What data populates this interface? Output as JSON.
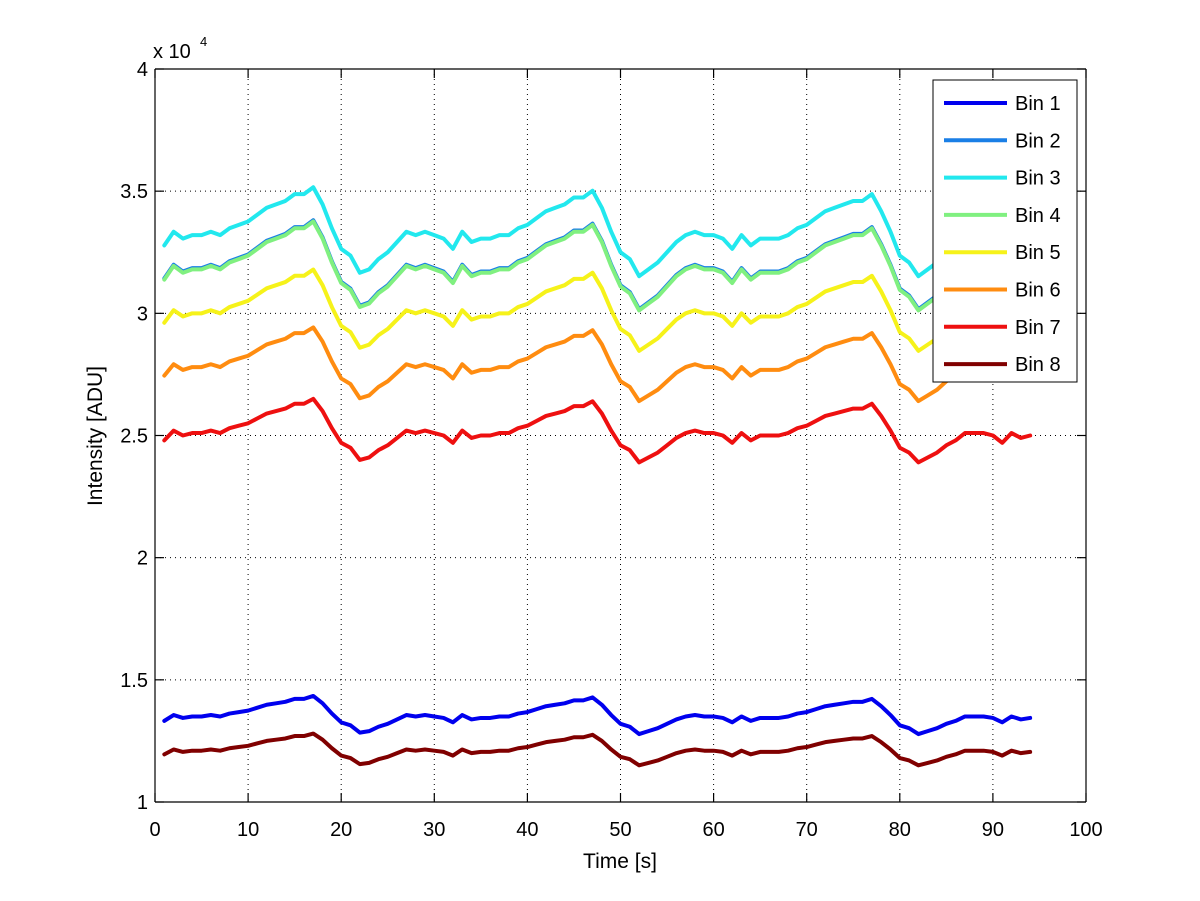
{
  "chart_data": {
    "type": "line",
    "title": "",
    "xlabel": "Time [s]",
    "ylabel": "Intensity [ADU]",
    "xlim": [
      0,
      100
    ],
    "ylim": [
      1,
      4
    ],
    "y_scale_exponent": 4,
    "y_multiplier_label": "x 10",
    "y_multiplier_exponent_label": "4",
    "x_ticks": [
      0,
      10,
      20,
      30,
      40,
      50,
      60,
      70,
      80,
      90,
      100
    ],
    "x_tick_labels": [
      "0",
      "10",
      "20",
      "30",
      "40",
      "50",
      "60",
      "70",
      "80",
      "90",
      "100"
    ],
    "y_ticks": [
      1,
      1.5,
      2,
      2.5,
      3,
      3.5,
      4
    ],
    "y_tick_labels": [
      "1",
      "1.5",
      "2",
      "2.5",
      "3",
      "3.5",
      "4"
    ],
    "grid": true,
    "grid_style": "dotted",
    "legend_position": "top-right",
    "x_start": 1,
    "x_end": 94,
    "base_level": 2.51,
    "base_deviation": [
      -0.03,
      0.01,
      -0.01,
      0,
      0,
      0.01,
      0,
      0.02,
      0.03,
      0.04,
      0.06,
      0.08,
      0.09,
      0.1,
      0.12,
      0.12,
      0.14,
      0.09,
      0.02,
      -0.04,
      -0.06,
      -0.11,
      -0.1,
      -0.07,
      -0.05,
      -0.02,
      0.01,
      0,
      0.01,
      0,
      -0.01,
      -0.04,
      0.01,
      -0.02,
      -0.01,
      -0.01,
      0,
      0,
      0.02,
      0.03,
      0.05,
      0.07,
      0.08,
      0.09,
      0.11,
      0.11,
      0.13,
      0.08,
      0.01,
      -0.05,
      -0.07,
      -0.12,
      -0.1,
      -0.08,
      -0.05,
      -0.02,
      0,
      0.01,
      0,
      0,
      -0.01,
      -0.04,
      0,
      -0.03,
      -0.01,
      -0.01,
      -0.01,
      0,
      0.02,
      0.03,
      0.05,
      0.07,
      0.08,
      0.09,
      0.1,
      0.1,
      0.12,
      0.07,
      0.01,
      -0.06,
      -0.08,
      -0.12,
      -0.1,
      -0.08,
      -0.05,
      -0.03,
      0,
      0,
      0,
      -0.01,
      -0.04,
      0,
      -0.02,
      -0.01
    ],
    "series": [
      {
        "name": "Bin 1",
        "color": "#0000ee",
        "offset": 1.35,
        "scale": 0.6
      },
      {
        "name": "Bin 2",
        "color": "#1a7fe6",
        "offset": 3.185,
        "scale": 1.4
      },
      {
        "name": "Bin 3",
        "color": "#22e8ee",
        "offset": 3.32,
        "scale": 1.4
      },
      {
        "name": "Bin 4",
        "color": "#80f080",
        "offset": 3.18,
        "scale": 1.4
      },
      {
        "name": "Bin 5",
        "color": "#f6f21a",
        "offset": 3.0,
        "scale": 1.28
      },
      {
        "name": "Bin 6",
        "color": "#ff8c10",
        "offset": 2.78,
        "scale": 1.16
      },
      {
        "name": "Bin 7",
        "color": "#ee1010",
        "offset": 2.51,
        "scale": 1.0
      },
      {
        "name": "Bin 8",
        "color": "#800000",
        "offset": 1.21,
        "scale": 0.5
      }
    ]
  }
}
